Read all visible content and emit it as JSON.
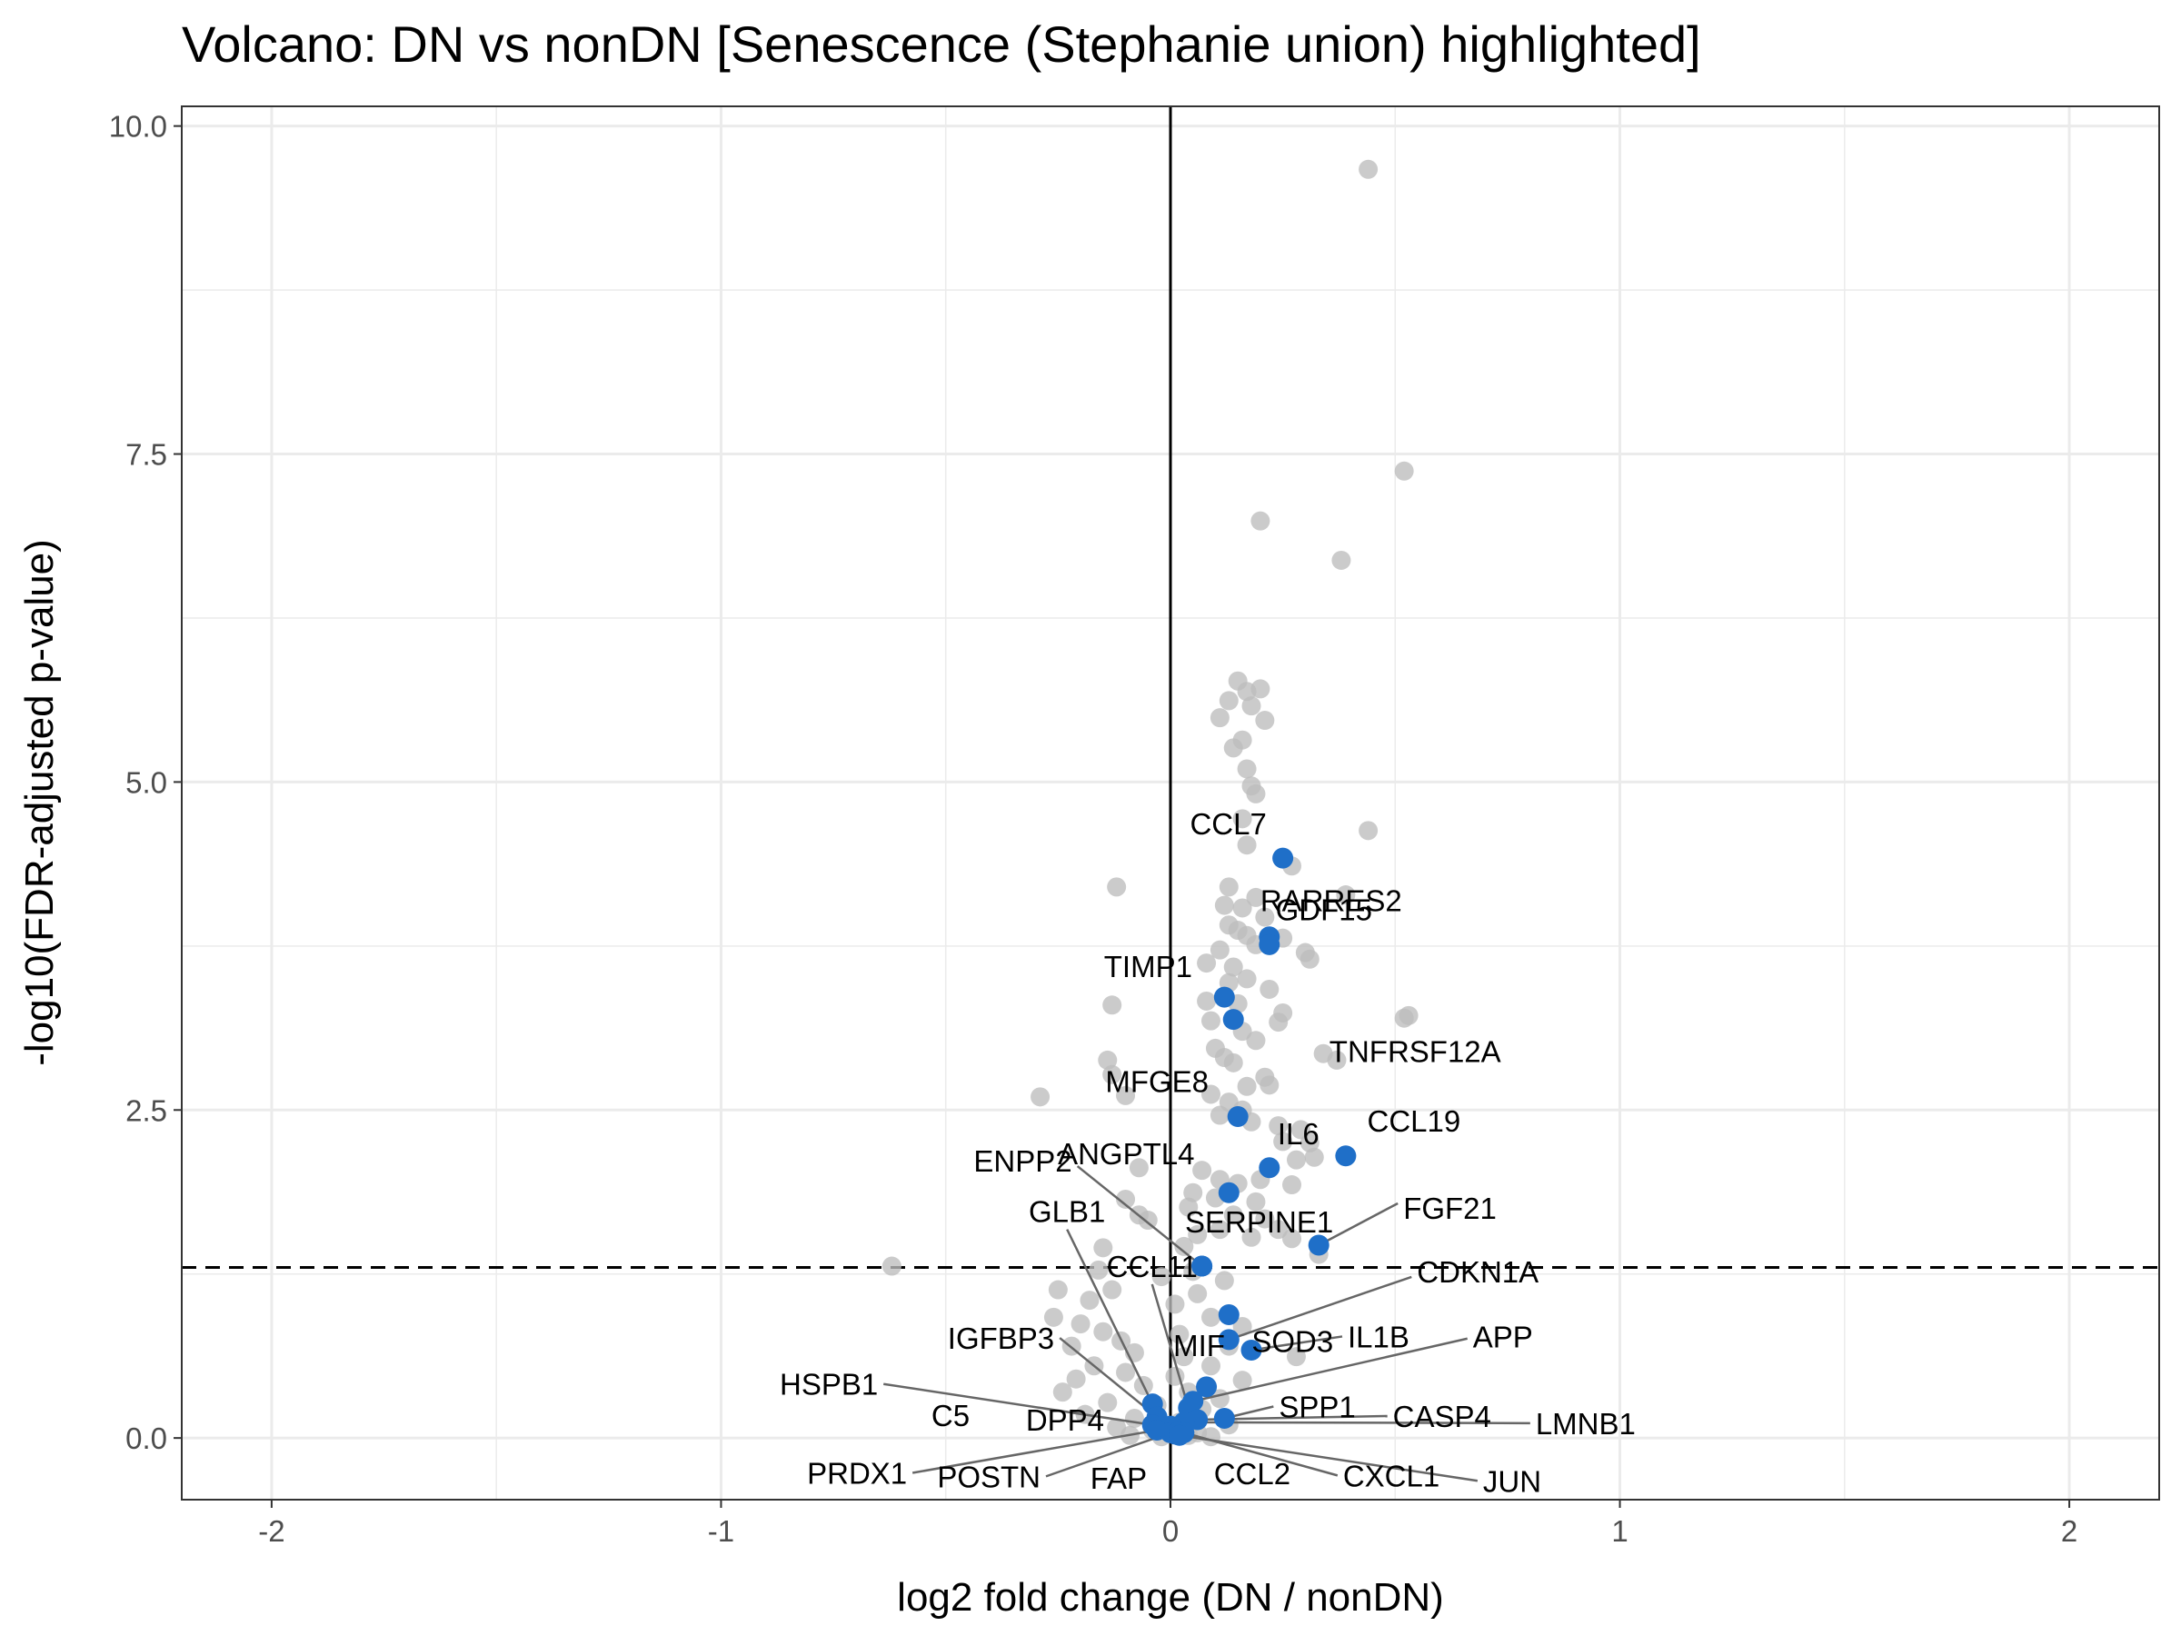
{
  "chart_data": {
    "type": "scatter",
    "title": "Volcano: DN vs nonDN [Senescence (Stephanie union) highlighted]",
    "xlabel": "log2 fold change (DN / nonDN)",
    "ylabel": "-log10(FDR-adjusted p-value)",
    "xlim": [
      -2.2,
      2.2
    ],
    "ylim": [
      -0.47,
      10.15
    ],
    "xticks": [
      -2,
      -1,
      0,
      1,
      2
    ],
    "xtick_labels": [
      "-2",
      "-1",
      "0",
      "1",
      "2"
    ],
    "yticks": [
      0,
      2.5,
      5,
      7.5,
      10
    ],
    "ytick_labels": [
      "0.0",
      "2.5",
      "5.0",
      "7.5",
      "10.0"
    ],
    "grid": true,
    "vline_x": 0,
    "hline_y": 1.3,
    "colors": {
      "background_points": "#bdbdbd",
      "highlight_points": "#1f6fc8",
      "grid": "#ebebeb",
      "reference_lines": "#000000",
      "leader_lines": "#666666"
    },
    "series": [
      {
        "points": [
          [
            0.44,
            9.67
          ],
          [
            0.52,
            7.37
          ],
          [
            0.2,
            6.99
          ],
          [
            0.38,
            6.69
          ],
          [
            0.15,
            5.77
          ],
          [
            0.17,
            5.69
          ],
          [
            0.2,
            5.71
          ],
          [
            0.13,
            5.62
          ],
          [
            0.11,
            5.49
          ],
          [
            0.21,
            5.47
          ],
          [
            0.16,
            5.32
          ],
          [
            0.18,
            5.58
          ],
          [
            0.14,
            5.26
          ],
          [
            0.17,
            5.1
          ],
          [
            0.18,
            4.97
          ],
          [
            0.19,
            4.91
          ],
          [
            0.16,
            4.72
          ],
          [
            0.17,
            4.52
          ],
          [
            0.44,
            4.63
          ],
          [
            0.27,
            4.36
          ],
          [
            -0.12,
            4.2
          ],
          [
            0.13,
            4.2
          ],
          [
            0.19,
            4.12
          ],
          [
            0.12,
            4.06
          ],
          [
            0.16,
            4.04
          ],
          [
            0.39,
            4.14
          ],
          [
            0.21,
            3.97
          ],
          [
            0.13,
            3.91
          ],
          [
            0.15,
            3.87
          ],
          [
            0.17,
            3.83
          ],
          [
            0.25,
            3.81
          ],
          [
            0.19,
            3.76
          ],
          [
            0.11,
            3.72
          ],
          [
            0.08,
            3.62
          ],
          [
            0.14,
            3.59
          ],
          [
            0.3,
            3.7
          ],
          [
            0.31,
            3.65
          ],
          [
            0.17,
            3.5
          ],
          [
            0.13,
            3.47
          ],
          [
            0.22,
            3.42
          ],
          [
            0.53,
            3.22
          ],
          [
            0.52,
            3.2
          ],
          [
            0.08,
            3.33
          ],
          [
            0.15,
            3.31
          ],
          [
            0.25,
            3.24
          ],
          [
            0.24,
            3.17
          ],
          [
            -0.13,
            3.3
          ],
          [
            0.09,
            3.18
          ],
          [
            0.16,
            3.1
          ],
          [
            0.19,
            3.03
          ],
          [
            0.34,
            2.93
          ],
          [
            0.37,
            2.88
          ],
          [
            0.1,
            2.97
          ],
          [
            0.12,
            2.9
          ],
          [
            0.14,
            2.86
          ],
          [
            -0.14,
            2.88
          ],
          [
            -0.13,
            2.77
          ],
          [
            0.21,
            2.75
          ],
          [
            0.17,
            2.68
          ],
          [
            0.22,
            2.69
          ],
          [
            0.09,
            2.62
          ],
          [
            -0.1,
            2.61
          ],
          [
            -0.29,
            2.6
          ],
          [
            0.13,
            2.56
          ],
          [
            0.16,
            2.5
          ],
          [
            0.11,
            2.46
          ],
          [
            0.18,
            2.41
          ],
          [
            0.24,
            2.38
          ],
          [
            0.29,
            2.35
          ],
          [
            0.25,
            2.26
          ],
          [
            0.31,
            2.25
          ],
          [
            0.32,
            2.14
          ],
          [
            0.28,
            2.12
          ],
          [
            -0.07,
            2.06
          ],
          [
            0.07,
            2.04
          ],
          [
            0.11,
            1.97
          ],
          [
            0.2,
            1.97
          ],
          [
            0.15,
            1.94
          ],
          [
            0.27,
            1.93
          ],
          [
            0.05,
            1.87
          ],
          [
            0.1,
            1.83
          ],
          [
            0.19,
            1.8
          ],
          [
            -0.1,
            1.82
          ],
          [
            0.04,
            1.76
          ],
          [
            -0.07,
            1.7
          ],
          [
            0.14,
            1.7
          ],
          [
            0.21,
            1.67
          ],
          [
            -0.05,
            1.66
          ],
          [
            0.11,
            1.59
          ],
          [
            0.24,
            1.59
          ],
          [
            0.06,
            1.55
          ],
          [
            0.18,
            1.53
          ],
          [
            0.27,
            1.52
          ],
          [
            -0.15,
            1.45
          ],
          [
            0.03,
            1.46
          ],
          [
            0.33,
            1.4
          ],
          [
            -0.62,
            1.31
          ],
          [
            -0.16,
            1.28
          ],
          [
            0.05,
            1.27
          ],
          [
            -0.02,
            1.23
          ],
          [
            0.12,
            1.2
          ],
          [
            -0.25,
            1.13
          ],
          [
            -0.13,
            1.13
          ],
          [
            0.06,
            1.1
          ],
          [
            -0.18,
            1.05
          ],
          [
            0.01,
            1.02
          ],
          [
            -0.26,
            0.92
          ],
          [
            0.09,
            0.92
          ],
          [
            -0.2,
            0.87
          ],
          [
            0.16,
            0.85
          ],
          [
            -0.15,
            0.81
          ],
          [
            0.02,
            0.79
          ],
          [
            -0.11,
            0.74
          ],
          [
            -0.22,
            0.7
          ],
          [
            0.13,
            0.7
          ],
          [
            -0.08,
            0.65
          ],
          [
            0.03,
            0.62
          ],
          [
            0.28,
            0.62
          ],
          [
            -0.17,
            0.55
          ],
          [
            0.09,
            0.55
          ],
          [
            -0.1,
            0.5
          ],
          [
            0.01,
            0.47
          ],
          [
            -0.21,
            0.45
          ],
          [
            0.16,
            0.44
          ],
          [
            -0.06,
            0.4
          ],
          [
            -0.24,
            0.35
          ],
          [
            0.04,
            0.35
          ],
          [
            0.11,
            0.3
          ],
          [
            -0.14,
            0.27
          ],
          [
            -0.03,
            0.25
          ],
          [
            0.07,
            0.22
          ],
          [
            -0.19,
            0.18
          ],
          [
            -0.08,
            0.15
          ],
          [
            0.02,
            0.12
          ],
          [
            0.13,
            0.1
          ],
          [
            -0.12,
            0.08
          ],
          [
            -0.04,
            0.06
          ],
          [
            0.06,
            0.04
          ],
          [
            -0.09,
            0.02
          ],
          [
            0.09,
            0.01
          ],
          [
            0.01,
            0.03
          ],
          [
            -0.02,
            0.01
          ],
          [
            0.04,
            0.02
          ]
        ]
      },
      {
        "points": [
          {
            "label": "CCL7",
            "x": 0.25,
            "y": 4.42
          },
          {
            "label": "RARRES2",
            "x": 0.22,
            "y": 3.82
          },
          {
            "label": "GDF15",
            "x": 0.22,
            "y": 3.76
          },
          {
            "label": "TIMP1",
            "x": 0.12,
            "y": 3.36
          },
          {
            "label": "TNFRSF12A",
            "x": 0.14,
            "y": 3.19
          },
          {
            "label": "MFGE8",
            "x": 0.15,
            "y": 2.45
          },
          {
            "label": "CCL19",
            "x": 0.39,
            "y": 2.15
          },
          {
            "label": "IL6",
            "x": 0.22,
            "y": 2.06
          },
          {
            "label": "ANGPTL4",
            "x": 0.13,
            "y": 1.87
          },
          {
            "label": "FGF21",
            "x": 0.33,
            "y": 1.47
          },
          {
            "label": "ENPP2",
            "x": 0.07,
            "y": 1.31
          },
          {
            "label": "SERPINE1",
            "x": 0.07,
            "y": 1.31
          },
          {
            "label": "SOD3",
            "x": 0.13,
            "y": 0.94
          },
          {
            "label": "CDKN1A",
            "x": 0.13,
            "y": 0.75
          },
          {
            "label": "IL1B",
            "x": 0.18,
            "y": 0.67
          },
          {
            "label": "MIF",
            "x": 0.08,
            "y": 0.39
          },
          {
            "label": "APP",
            "x": 0.05,
            "y": 0.28
          },
          {
            "label": "GLB1",
            "x": -0.04,
            "y": 0.26
          },
          {
            "label": "CCL11",
            "x": 0.04,
            "y": 0.23
          },
          {
            "label": "IGFBP3",
            "x": -0.03,
            "y": 0.16
          },
          {
            "label": "SPP1",
            "x": 0.12,
            "y": 0.15
          },
          {
            "label": "CASP4",
            "x": 0.06,
            "y": 0.14
          },
          {
            "label": "LMNB1",
            "x": 0.03,
            "y": 0.12
          },
          {
            "label": "HSPB1",
            "x": -0.04,
            "y": 0.1
          },
          {
            "label": "C5",
            "x": 0.0,
            "y": 0.09
          },
          {
            "label": "DPP4",
            "x": 0.01,
            "y": 0.07
          },
          {
            "label": "PRDX1",
            "x": -0.03,
            "y": 0.06
          },
          {
            "label": "POSTN",
            "x": 0.0,
            "y": 0.04
          },
          {
            "label": "FAP",
            "x": 0.01,
            "y": 0.03
          },
          {
            "label": "CCL2",
            "x": 0.02,
            "y": 0.05
          },
          {
            "label": "CXCL1",
            "x": 0.03,
            "y": 0.04
          },
          {
            "label": "JUN",
            "x": 0.02,
            "y": 0.02
          }
        ]
      }
    ]
  }
}
